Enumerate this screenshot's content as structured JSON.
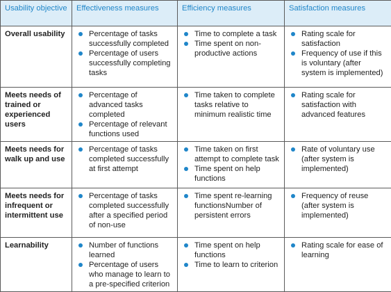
{
  "header": {
    "col0": "Usability objective",
    "col1": "Effectiveness measures",
    "col2": "Efficiency measures",
    "col3": "Satisfaction measures"
  },
  "rows": [
    {
      "objective": "Overall usability",
      "effectiveness": [
        "Percentage of tasks successfully completed",
        "Percentage of users successfully completing tasks"
      ],
      "efficiency": [
        "Time to complete a task",
        "Time spent on non-productive actions"
      ],
      "satisfaction": [
        "Rating scale for satisfaction",
        "Frequency of use if this is voluntary (after system is implemented)"
      ]
    },
    {
      "objective": "Meets needs of trained or experienced users",
      "effectiveness": [
        "Percentage of advanced tasks completed",
        "Percentage of relevant functions used"
      ],
      "efficiency": [
        "Time taken to complete tasks relative to minimum realistic time"
      ],
      "satisfaction": [
        "Rating scale for satisfaction with advanced features"
      ]
    },
    {
      "objective": "Meets needs for walk up and use",
      "effectiveness": [
        "Percentage of tasks completed successfully at first attempt"
      ],
      "efficiency": [
        "Time taken on first attempt to complete task",
        "Time spent on help functions"
      ],
      "satisfaction": [
        "Rate of voluntary use (after system is implemented)"
      ]
    },
    {
      "objective": "Meets needs for infrequent or intermittent use",
      "effectiveness": [
        "Percentage of tasks completed successfully after a specified period of non-use"
      ],
      "efficiency": [
        "Time spent re-learning functionsNumber of persistent errors"
      ],
      "satisfaction": [
        "Frequency of reuse (after system is implemented)"
      ]
    },
    {
      "objective": "Learnability",
      "effectiveness": [
        "Number of functions learned",
        "Percentage of users who manage to learn to a pre-specified criterion"
      ],
      "efficiency": [
        "Time spent on help functions",
        "Time to learn to criterion"
      ],
      "satisfaction": [
        "Rating scale for ease of learning"
      ]
    }
  ],
  "colors": {
    "header_background": "#dcedf8",
    "header_text": "#1f86c9",
    "bullet": "#1f86c9",
    "border": "#5a5a5a"
  },
  "icons": {
    "bullet": "bullet-dot-icon"
  }
}
